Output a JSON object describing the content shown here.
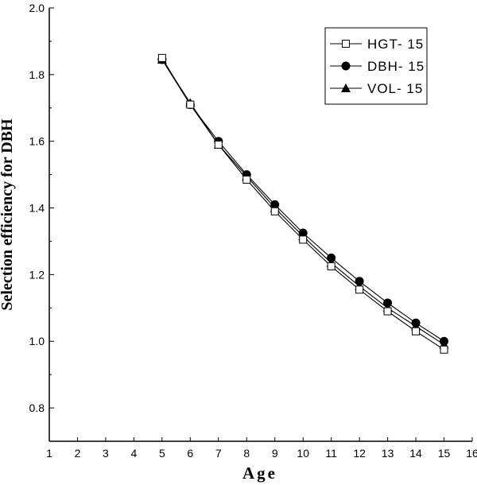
{
  "chart_data": {
    "type": "line",
    "xlabel": "Age",
    "ylabel": "Selection efficiency for DBH",
    "xlim": [
      1,
      16
    ],
    "ylim": [
      0.7,
      2.0
    ],
    "xticks": [
      1,
      2,
      3,
      4,
      5,
      6,
      7,
      8,
      9,
      10,
      11,
      12,
      13,
      14,
      15,
      16
    ],
    "yticks": [
      0.8,
      1.0,
      1.2,
      1.4,
      1.6,
      1.8,
      2.0
    ],
    "ytick_labels": [
      "0.8",
      "1.0",
      "1.2",
      "1.4",
      "1.6",
      "1.8",
      "2.0"
    ],
    "legend_position": "top-right",
    "grid": false,
    "x": [
      5,
      6,
      7,
      8,
      9,
      10,
      11,
      12,
      13,
      14,
      15
    ],
    "series": [
      {
        "name": "HGT- 15",
        "marker": "open-square",
        "values": [
          1.85,
          1.71,
          1.59,
          1.485,
          1.39,
          1.305,
          1.225,
          1.155,
          1.09,
          1.03,
          0.975
        ]
      },
      {
        "name": "DBH- 15",
        "marker": "filled-circle",
        "values": [
          1.845,
          1.71,
          1.6,
          1.5,
          1.41,
          1.325,
          1.25,
          1.18,
          1.115,
          1.055,
          1.0
        ]
      },
      {
        "name": "VOL- 15",
        "marker": "filled-triangle",
        "values": [
          1.845,
          1.715,
          1.59,
          1.495,
          1.4,
          1.315,
          1.235,
          1.165,
          1.1,
          1.045,
          0.99
        ]
      }
    ]
  }
}
